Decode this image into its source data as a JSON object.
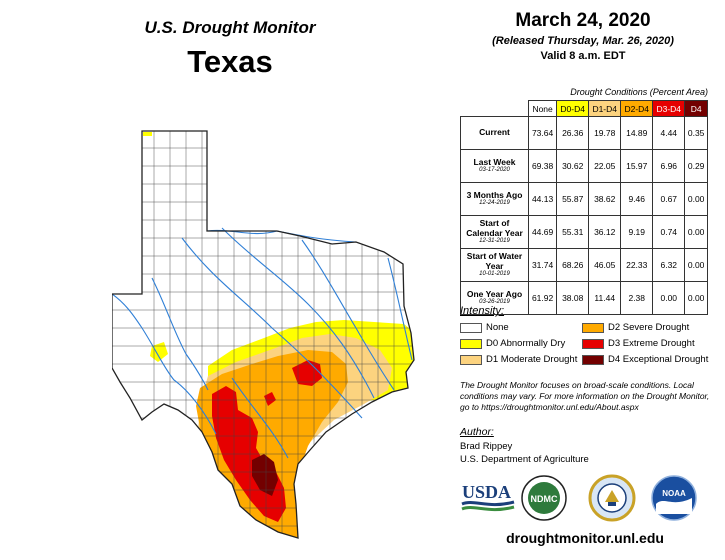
{
  "header": {
    "title": "U.S. Drought Monitor",
    "state": "Texas"
  },
  "date_info": {
    "date": "March 24, 2020",
    "released": "(Released Thursday, Mar. 26, 2020)",
    "valid": "Valid 8 a.m. EDT"
  },
  "table": {
    "caption": "Drought Conditions (Percent Area)",
    "columns": [
      "None",
      "D0-D4",
      "D1-D4",
      "D2-D4",
      "D3-D4",
      "D4"
    ],
    "rows": [
      {
        "label": "Current",
        "date": "",
        "values": [
          "73.64",
          "26.36",
          "19.78",
          "14.89",
          "4.44",
          "0.35"
        ]
      },
      {
        "label": "Last Week",
        "date": "03-17-2020",
        "values": [
          "69.38",
          "30.62",
          "22.05",
          "15.97",
          "6.96",
          "0.29"
        ]
      },
      {
        "label": "3 Months Ago",
        "date": "12-24-2019",
        "values": [
          "44.13",
          "55.87",
          "38.62",
          "9.46",
          "0.67",
          "0.00"
        ]
      },
      {
        "label": "Start of Calendar Year",
        "date": "12-31-2019",
        "values": [
          "44.69",
          "55.31",
          "36.12",
          "9.19",
          "0.74",
          "0.00"
        ]
      },
      {
        "label": "Start of Water Year",
        "date": "10-01-2019",
        "values": [
          "31.74",
          "68.26",
          "46.05",
          "22.33",
          "6.32",
          "0.00"
        ]
      },
      {
        "label": "One Year Ago",
        "date": "03-26-2019",
        "values": [
          "61.92",
          "38.08",
          "11.44",
          "2.38",
          "0.00",
          "0.00"
        ]
      }
    ]
  },
  "legend": {
    "title": "Intensity:",
    "items": [
      {
        "label": "None",
        "color": "#ffffff"
      },
      {
        "label": "D2 Severe Drought",
        "color": "#ffaa00"
      },
      {
        "label": "D0 Abnormally Dry",
        "color": "#ffff00"
      },
      {
        "label": "D3 Extreme Drought",
        "color": "#e60000"
      },
      {
        "label": "D1 Moderate Drought",
        "color": "#fcd37f"
      },
      {
        "label": "D4 Exceptional Drought",
        "color": "#730000"
      }
    ]
  },
  "note": "The Drought Monitor focuses on broad-scale conditions. Local conditions may vary. For more information on the Drought Monitor, go to https://droughtmonitor.unl.edu/About.aspx",
  "author": {
    "heading": "Author:",
    "name": "Brad Rippey",
    "org": "U.S. Department of Agriculture"
  },
  "logos": {
    "usda": "USDA",
    "ndmc": "NDMC",
    "noaa": "NOAA"
  },
  "website": "droughtmonitor.unl.edu"
}
